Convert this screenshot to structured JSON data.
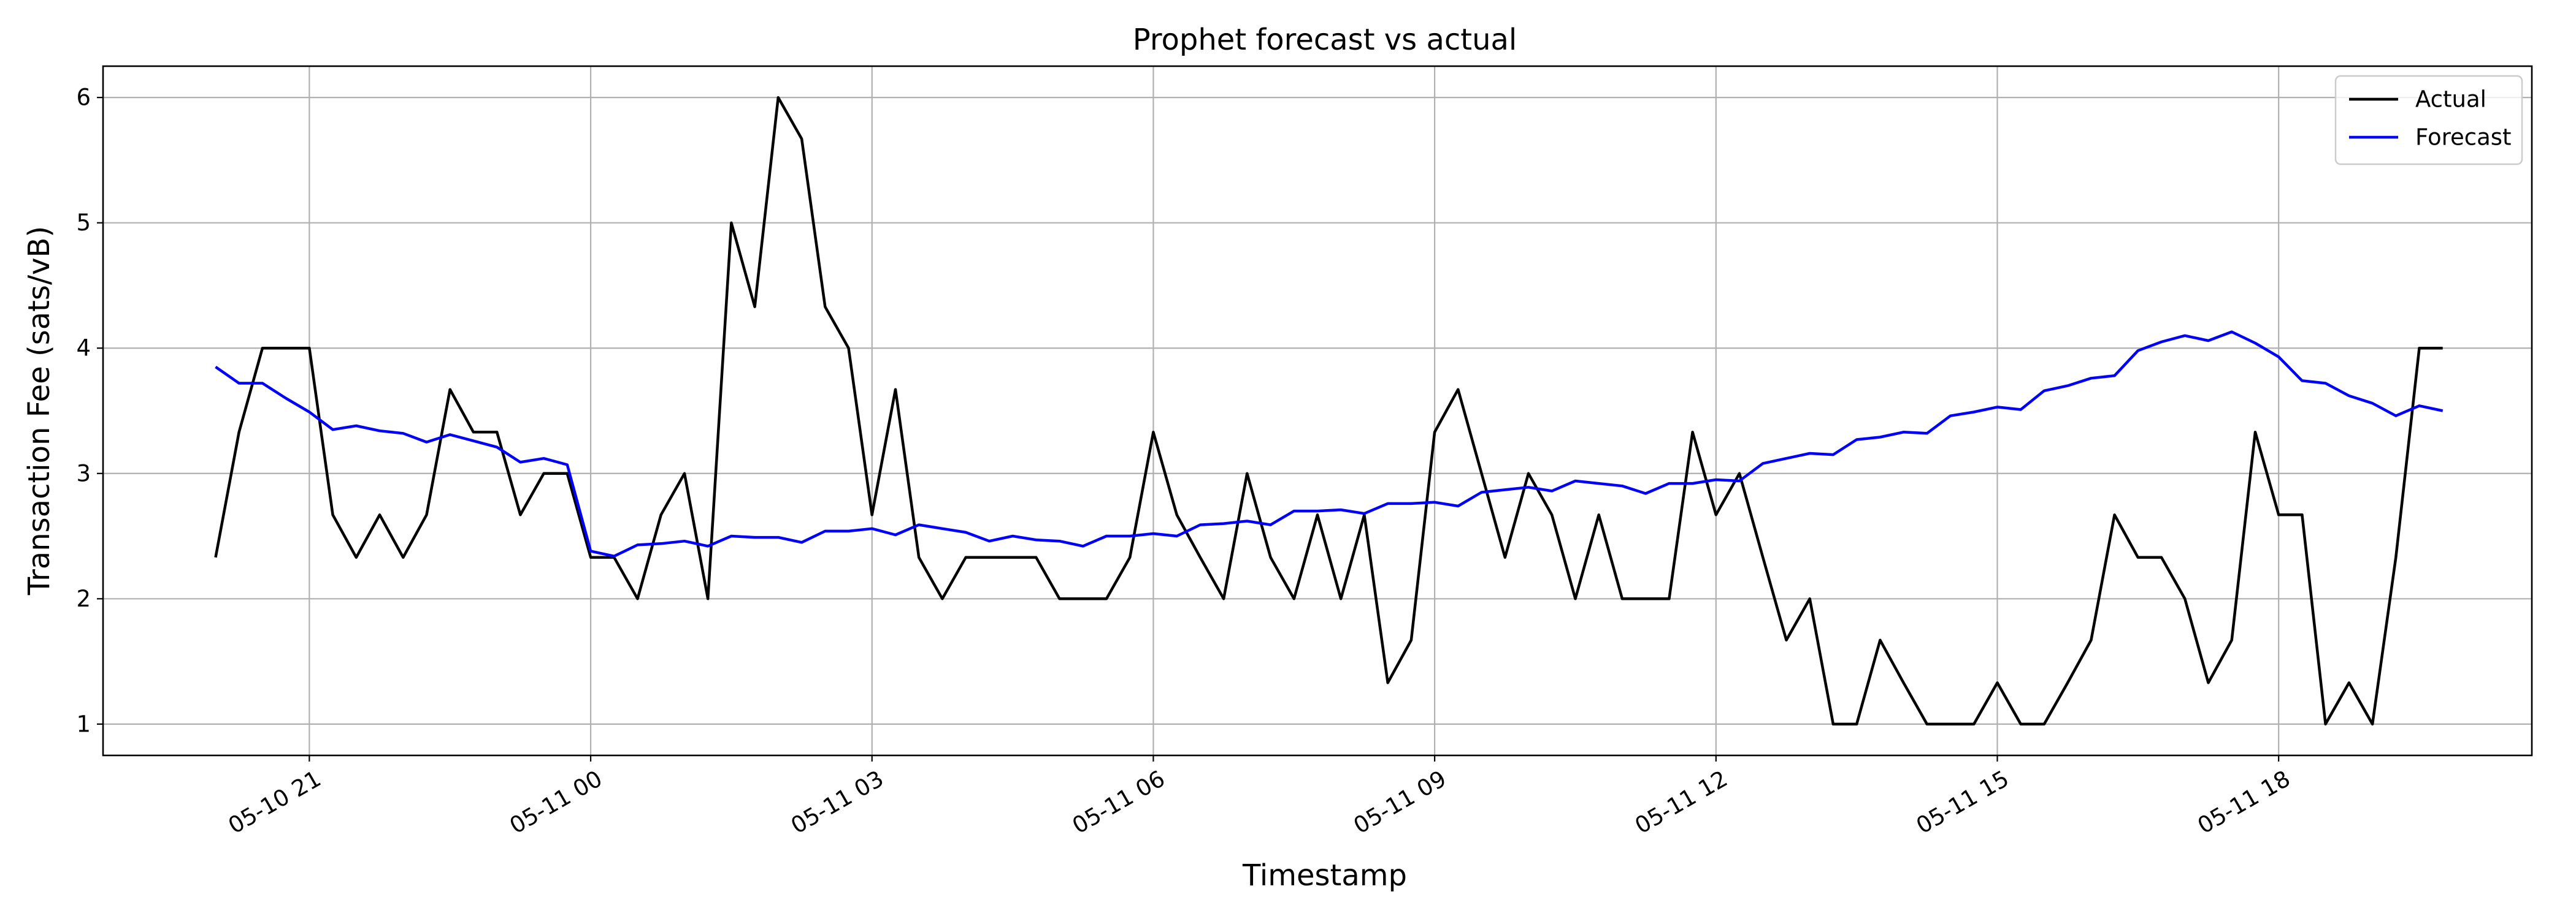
{
  "chart_data": {
    "type": "line",
    "title": "Prophet forecast vs actual",
    "xlabel": "Timestamp",
    "ylabel": "Transaction Fee (sats/vB)",
    "xlim": [
      "2024-05-10 18:48",
      "2024-05-11 20:42"
    ],
    "ylim": [
      0.75,
      6.25
    ],
    "x_ticks": [
      "2024-05-10 21:00",
      "2024-05-11 00:00",
      "2024-05-11 03:00",
      "2024-05-11 06:00",
      "2024-05-11 09:00",
      "2024-05-11 12:00",
      "2024-05-11 15:00",
      "2024-05-11 18:00"
    ],
    "x_tick_labels": [
      "05-10 21",
      "05-11 00",
      "05-11 03",
      "05-11 06",
      "05-11 09",
      "05-11 12",
      "05-11 15",
      "05-11 18"
    ],
    "y_ticks": [
      1,
      2,
      3,
      4,
      5,
      6
    ],
    "grid": true,
    "legend_position": "top-right",
    "x_start": "2024-05-10 20:00",
    "x_interval_minutes": 15,
    "series": [
      {
        "name": "Actual",
        "color": "#000000",
        "values": [
          2.33,
          3.33,
          4.0,
          4.0,
          4.0,
          2.67,
          2.33,
          2.67,
          2.33,
          2.67,
          3.67,
          3.33,
          3.33,
          2.67,
          3.0,
          3.0,
          2.33,
          2.33,
          2.0,
          2.67,
          3.0,
          2.0,
          5.0,
          4.33,
          6.0,
          5.67,
          4.33,
          4.0,
          2.67,
          3.67,
          2.33,
          2.0,
          2.33,
          2.33,
          2.33,
          2.33,
          2.0,
          2.0,
          2.0,
          2.33,
          3.33,
          2.67,
          2.33,
          2.0,
          3.0,
          2.33,
          2.0,
          2.67,
          2.0,
          2.67,
          1.33,
          1.67,
          3.33,
          3.67,
          3.0,
          2.33,
          3.0,
          2.67,
          2.0,
          2.67,
          2.0,
          2.0,
          2.0,
          3.33,
          2.67,
          3.0,
          2.33,
          1.67,
          2.0,
          1.0,
          1.0,
          1.67,
          1.33,
          1.0,
          1.0,
          1.0,
          1.33,
          1.0,
          1.0,
          1.33,
          1.67,
          2.67,
          2.33,
          2.33,
          2.0,
          1.33,
          1.67,
          3.33,
          2.67,
          2.67,
          1.0,
          1.33,
          1.0,
          2.33,
          4.0,
          4.0
        ]
      },
      {
        "name": "Forecast",
        "color": "#0000ff",
        "values": [
          3.85,
          3.72,
          3.72,
          3.6,
          3.49,
          3.35,
          3.38,
          3.34,
          3.32,
          3.25,
          3.31,
          3.26,
          3.21,
          3.09,
          3.12,
          3.07,
          2.38,
          2.34,
          2.43,
          2.44,
          2.46,
          2.42,
          2.5,
          2.49,
          2.49,
          2.45,
          2.54,
          2.54,
          2.56,
          2.51,
          2.59,
          2.56,
          2.53,
          2.46,
          2.5,
          2.47,
          2.46,
          2.42,
          2.5,
          2.5,
          2.52,
          2.5,
          2.59,
          2.6,
          2.62,
          2.59,
          2.7,
          2.7,
          2.71,
          2.68,
          2.76,
          2.76,
          2.77,
          2.74,
          2.85,
          2.87,
          2.89,
          2.86,
          2.94,
          2.92,
          2.9,
          2.84,
          2.92,
          2.92,
          2.95,
          2.94,
          3.08,
          3.12,
          3.16,
          3.15,
          3.27,
          3.29,
          3.33,
          3.32,
          3.46,
          3.49,
          3.53,
          3.51,
          3.66,
          3.7,
          3.76,
          3.78,
          3.98,
          4.05,
          4.1,
          4.06,
          4.13,
          4.04,
          3.93,
          3.74,
          3.72,
          3.62,
          3.56,
          3.46,
          3.54,
          3.5
        ]
      }
    ]
  }
}
